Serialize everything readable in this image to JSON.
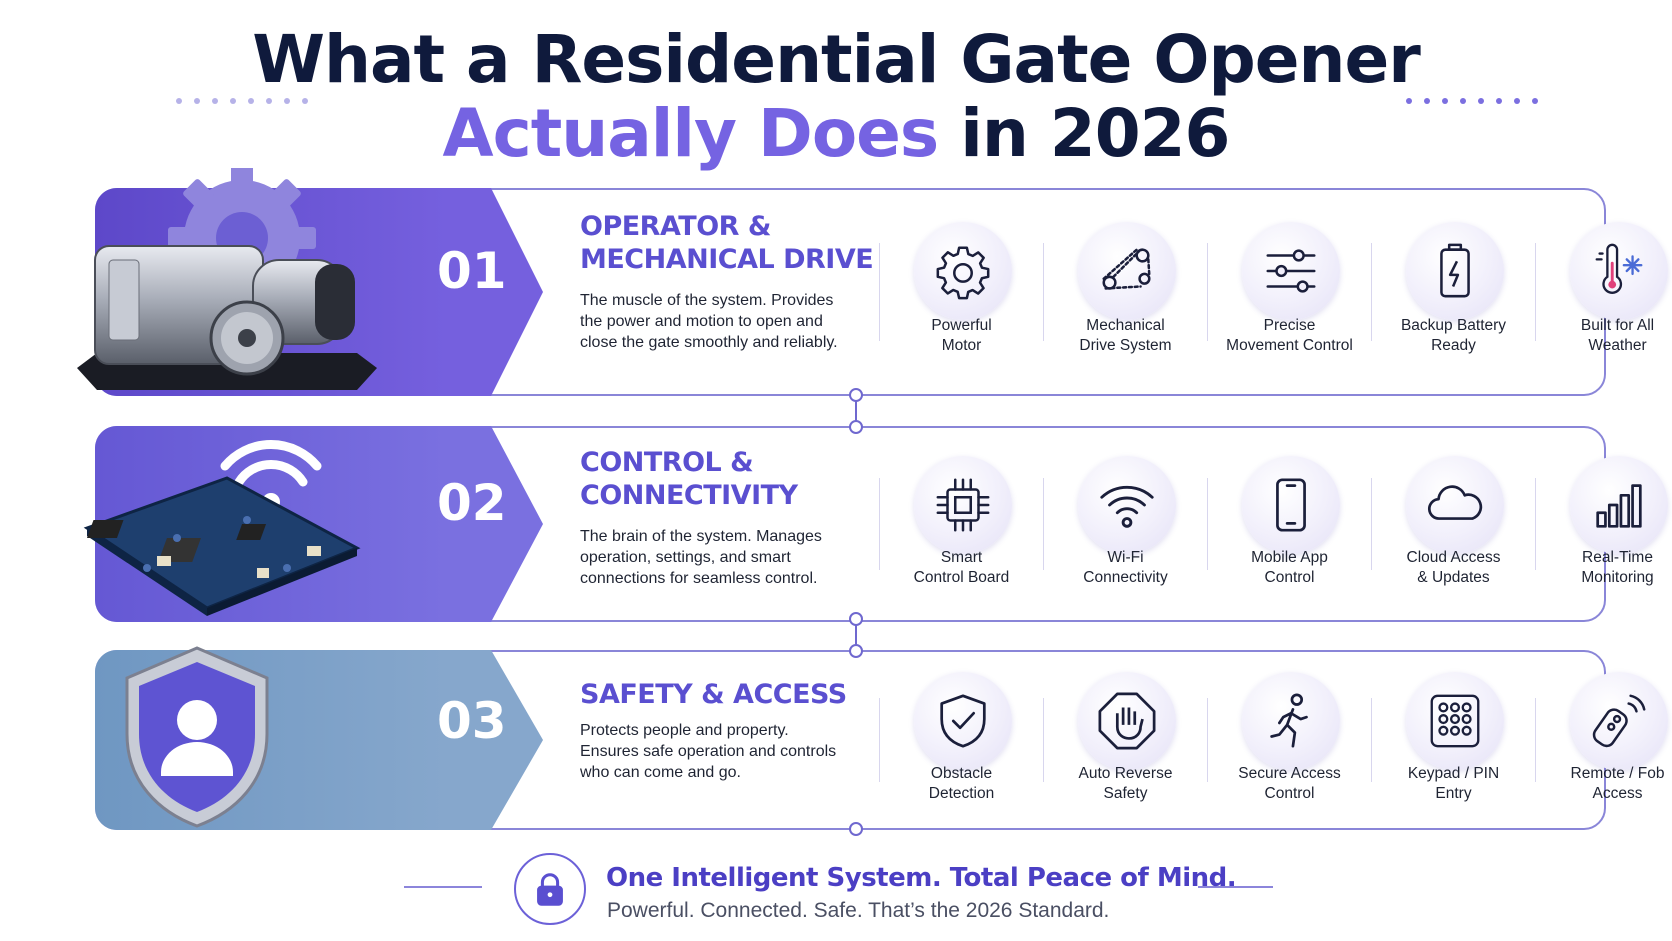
{
  "title": {
    "line1": "What a Residential Gate Opener",
    "line2_accent": "Actually Does",
    "line2_rest": " in 2026"
  },
  "colors": {
    "primary": "#5a4fd0",
    "accent": "#7563e2",
    "band1": "#6a55d6",
    "band2": "#6f68dc",
    "band3": "#7f9fc2",
    "navy": "#0f1a3c"
  },
  "sections": [
    {
      "number": "01",
      "title_line1": "OPERATOR &",
      "title_line2": "MECHANICAL DRIVE",
      "description": "The muscle of the system. Provides the power and motion to open and close the gate smoothly and reliably.",
      "hero_icon": "gate-motor-with-gear",
      "features": [
        {
          "line1": "Powerful",
          "line2": "Motor",
          "icon": "gear-icon"
        },
        {
          "line1": "Mechanical",
          "line2": "Drive System",
          "icon": "chain-drive-icon"
        },
        {
          "line1": "Precise",
          "line2": "Movement Control",
          "icon": "sliders-icon"
        },
        {
          "line1": "Backup Battery",
          "line2": "Ready",
          "icon": "battery-icon"
        },
        {
          "line1": "Built for All",
          "line2": "Weather",
          "icon": "thermometer-snow-icon"
        }
      ]
    },
    {
      "number": "02",
      "title_line1": "CONTROL &",
      "title_line2": "CONNECTIVITY",
      "description": "The brain of the system. Manages operation, settings, and smart connections for seamless control.",
      "hero_icon": "circuit-board-with-wifi",
      "features": [
        {
          "line1": "Smart",
          "line2": "Control Board",
          "icon": "chip-icon"
        },
        {
          "line1": "Wi-Fi",
          "line2": "Connectivity",
          "icon": "wifi-icon"
        },
        {
          "line1": "Mobile App",
          "line2": "Control",
          "icon": "phone-icon"
        },
        {
          "line1": "Cloud Access",
          "line2": "& Updates",
          "icon": "cloud-icon"
        },
        {
          "line1": "Real-Time",
          "line2": "Monitoring",
          "icon": "bar-chart-icon"
        }
      ]
    },
    {
      "number": "03",
      "title_line1": "SAFETY & ACCESS",
      "title_line2": "",
      "description": "Protects people and property. Ensures safe operation and controls who can come and go.",
      "hero_icon": "shield-user",
      "features": [
        {
          "line1": "Obstacle",
          "line2": "Detection",
          "icon": "shield-check-icon"
        },
        {
          "line1": "Auto Reverse",
          "line2": "Safety",
          "icon": "stop-hand-icon"
        },
        {
          "line1": "Secure Access",
          "line2": "Control",
          "icon": "walking-person-icon"
        },
        {
          "line1": "Keypad / PIN",
          "line2": "Entry",
          "icon": "keypad-icon"
        },
        {
          "line1": "Remote / Fob",
          "line2": "Access",
          "icon": "remote-fob-icon"
        }
      ]
    }
  ],
  "footer": {
    "headline": "One Intelligent System. Total Peace of Mind.",
    "subline": "Powerful. Connected. Safe. That’s the 2026 Standard.",
    "icon": "lock-icon"
  }
}
